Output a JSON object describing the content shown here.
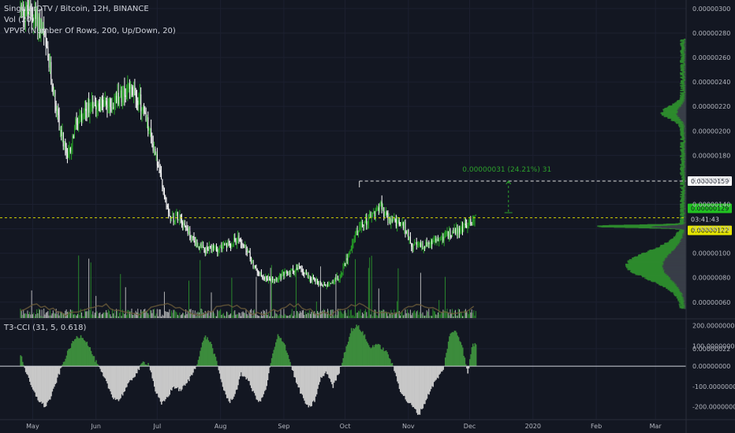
{
  "header": {
    "symbol_line": "SingularDTV / Bitcoin, 12H, BINANCE",
    "vol_line": "Vol (20)",
    "vpvr_line": "VPVR (Number Of Rows, 200, Up/Down, 20)",
    "cci_line": "T3-CCI (31, 5, 0.618)"
  },
  "measure": {
    "label": "0.00000031 (24.21%) 31"
  },
  "price_badges": {
    "measure_price": "0.00000159",
    "last_price": "0.00000129",
    "countdown": "03:41:43",
    "low_marker": "0.00000122"
  },
  "colors": {
    "background": "#131722",
    "up": "#26a726",
    "down": "#ffffff",
    "measure": "#2ca02c",
    "last_price_line": "#d4d400",
    "cci_pos": "#3c8c3c",
    "cci_neg": "#c8c8c8",
    "vol_ma": "#6b5b3a"
  },
  "chart_data": [
    {
      "type": "candlestick",
      "title": "SingularDTV / Bitcoin, 12H, BINANCE",
      "y_ticks": [
        "0.00000300",
        "0.00000280",
        "0.00000260",
        "0.00000240",
        "0.00000220",
        "0.00000200",
        "0.00000180",
        "0.00000160",
        "0.00000140",
        "0.00000120",
        "0.00000100",
        "0.00000080",
        "0.00000060",
        "0.00000022"
      ],
      "ylim": [
        4.7e-07,
        3.07e-06
      ],
      "x_ticks": [
        "May",
        "Jun",
        "Jul",
        "Aug",
        "Sep",
        "Oct",
        "Nov",
        "Dec",
        "2020",
        "Feb",
        "Mar"
      ],
      "close_path": [
        [
          "2019-04-25",
          3e-06
        ],
        [
          "2019-05-01",
          2.95e-06
        ],
        [
          "2019-05-05",
          2.88e-06
        ],
        [
          "2019-05-10",
          2.45e-06
        ],
        [
          "2019-05-14",
          2.05e-06
        ],
        [
          "2019-05-18",
          1.75e-06
        ],
        [
          "2019-05-22",
          2.05e-06
        ],
        [
          "2019-05-26",
          2.1e-06
        ],
        [
          "2019-05-30",
          2.25e-06
        ],
        [
          "2019-06-03",
          2.22e-06
        ],
        [
          "2019-06-08",
          2.2e-06
        ],
        [
          "2019-06-12",
          2.28e-06
        ],
        [
          "2019-06-17",
          2.34e-06
        ],
        [
          "2019-06-21",
          2.3e-06
        ],
        [
          "2019-06-25",
          2.12e-06
        ],
        [
          "2019-06-30",
          1.82e-06
        ],
        [
          "2019-07-04",
          1.5e-06
        ],
        [
          "2019-07-08",
          1.28e-06
        ],
        [
          "2019-07-12",
          1.32e-06
        ],
        [
          "2019-07-16",
          1.18e-06
        ],
        [
          "2019-07-20",
          1.08e-06
        ],
        [
          "2019-07-24",
          1.02e-06
        ],
        [
          "2019-07-30",
          1.04e-06
        ],
        [
          "2019-08-04",
          1.06e-06
        ],
        [
          "2019-08-10",
          1.12e-06
        ],
        [
          "2019-08-15",
          9.8e-07
        ],
        [
          "2019-08-19",
          8.4e-07
        ],
        [
          "2019-08-24",
          7.9e-07
        ],
        [
          "2019-08-29",
          8e-07
        ],
        [
          "2019-09-03",
          8.4e-07
        ],
        [
          "2019-09-08",
          8.8e-07
        ],
        [
          "2019-09-12",
          8.3e-07
        ],
        [
          "2019-09-16",
          7.8e-07
        ],
        [
          "2019-09-20",
          7.4e-07
        ],
        [
          "2019-09-25",
          7.7e-07
        ],
        [
          "2019-09-29",
          8.2e-07
        ],
        [
          "2019-10-03",
          1.02e-06
        ],
        [
          "2019-10-07",
          1.18e-06
        ],
        [
          "2019-10-11",
          1.26e-06
        ],
        [
          "2019-10-15",
          1.32e-06
        ],
        [
          "2019-10-18",
          1.4e-06
        ],
        [
          "2019-10-22",
          1.27e-06
        ],
        [
          "2019-10-26",
          1.25e-06
        ],
        [
          "2019-10-30",
          1.22e-06
        ],
        [
          "2019-11-03",
          1.06e-06
        ],
        [
          "2019-11-07",
          1.06e-06
        ],
        [
          "2019-11-12",
          1.08e-06
        ],
        [
          "2019-11-17",
          1.12e-06
        ],
        [
          "2019-11-22",
          1.17e-06
        ],
        [
          "2019-11-26",
          1.19e-06
        ],
        [
          "2019-12-01",
          1.25e-06
        ],
        [
          "2019-12-04",
          1.29e-06
        ]
      ],
      "last_price": 1.29e-06,
      "measure_from": 1.28e-06,
      "measure_to": 1.59e-06,
      "measure_change": "0.00000031 (24.21%) 31"
    },
    {
      "type": "area",
      "title": "T3-CCI (31, 5, 0.618)",
      "y_ticks": [
        "200.00000000",
        "100.00000000",
        "0.00000000",
        "-100.00000000",
        "-200.00000000"
      ],
      "ylim": [
        -260,
        230
      ],
      "points": [
        [
          "2019-04-25",
          60
        ],
        [
          "2019-04-28",
          -40
        ],
        [
          "2019-05-01",
          -120
        ],
        [
          "2019-05-04",
          -170
        ],
        [
          "2019-05-07",
          -200
        ],
        [
          "2019-05-10",
          -150
        ],
        [
          "2019-05-13",
          -60
        ],
        [
          "2019-05-16",
          20
        ],
        [
          "2019-05-19",
          90
        ],
        [
          "2019-05-22",
          140
        ],
        [
          "2019-05-25",
          150
        ],
        [
          "2019-05-28",
          110
        ],
        [
          "2019-05-31",
          40
        ],
        [
          "2019-06-03",
          -20
        ],
        [
          "2019-06-06",
          -80
        ],
        [
          "2019-06-09",
          -150
        ],
        [
          "2019-06-12",
          -170
        ],
        [
          "2019-06-15",
          -120
        ],
        [
          "2019-06-18",
          -70
        ],
        [
          "2019-06-21",
          -30
        ],
        [
          "2019-06-24",
          20
        ],
        [
          "2019-06-27",
          10
        ],
        [
          "2019-06-30",
          -120
        ],
        [
          "2019-07-03",
          -190
        ],
        [
          "2019-07-06",
          -150
        ],
        [
          "2019-07-09",
          -100
        ],
        [
          "2019-07-12",
          -120
        ],
        [
          "2019-07-15",
          -90
        ],
        [
          "2019-07-18",
          -40
        ],
        [
          "2019-07-21",
          30
        ],
        [
          "2019-07-24",
          150
        ],
        [
          "2019-07-27",
          120
        ],
        [
          "2019-07-30",
          20
        ],
        [
          "2019-08-02",
          -100
        ],
        [
          "2019-08-05",
          -180
        ],
        [
          "2019-08-08",
          -140
        ],
        [
          "2019-08-11",
          -40
        ],
        [
          "2019-08-14",
          -60
        ],
        [
          "2019-08-17",
          -130
        ],
        [
          "2019-08-20",
          -180
        ],
        [
          "2019-08-23",
          -120
        ],
        [
          "2019-08-26",
          40
        ],
        [
          "2019-08-29",
          150
        ],
        [
          "2019-09-01",
          120
        ],
        [
          "2019-09-04",
          20
        ],
        [
          "2019-09-07",
          -80
        ],
        [
          "2019-09-10",
          -150
        ],
        [
          "2019-09-13",
          -210
        ],
        [
          "2019-09-16",
          -170
        ],
        [
          "2019-09-19",
          -60
        ],
        [
          "2019-09-22",
          -30
        ],
        [
          "2019-09-25",
          -100
        ],
        [
          "2019-09-28",
          -30
        ],
        [
          "2019-10-01",
          80
        ],
        [
          "2019-10-04",
          180
        ],
        [
          "2019-10-07",
          200
        ],
        [
          "2019-10-10",
          160
        ],
        [
          "2019-10-13",
          90
        ],
        [
          "2019-10-16",
          110
        ],
        [
          "2019-10-19",
          90
        ],
        [
          "2019-10-22",
          60
        ],
        [
          "2019-10-25",
          -20
        ],
        [
          "2019-10-28",
          -120
        ],
        [
          "2019-10-31",
          -170
        ],
        [
          "2019-11-03",
          -200
        ],
        [
          "2019-11-06",
          -240
        ],
        [
          "2019-11-09",
          -180
        ],
        [
          "2019-11-12",
          -110
        ],
        [
          "2019-11-15",
          -60
        ],
        [
          "2019-11-18",
          -20
        ],
        [
          "2019-11-21",
          150
        ],
        [
          "2019-11-24",
          180
        ],
        [
          "2019-11-27",
          110
        ],
        [
          "2019-11-30",
          -40
        ],
        [
          "2019-12-02",
          100
        ],
        [
          "2019-12-04",
          110
        ]
      ]
    }
  ]
}
